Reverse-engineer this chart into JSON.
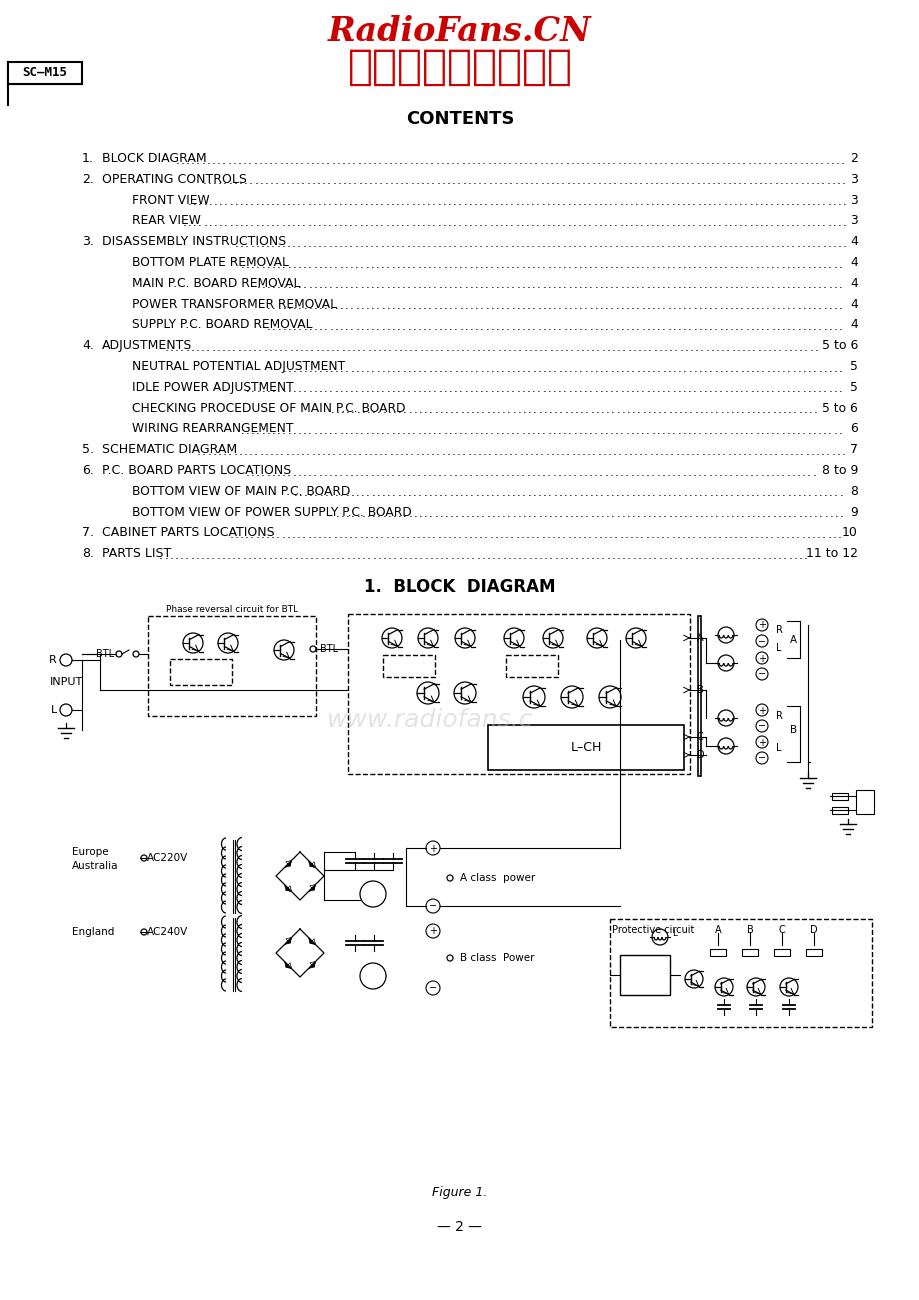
{
  "page_bg": "#ffffff",
  "header_line1": "RadioFans.CN",
  "header_line2": "收音机爱好者资料库",
  "header_color": "#cc0000",
  "label_text": "SC–M15",
  "contents_title": "CONTENTS",
  "contents_items": [
    {
      "num": "1.",
      "indent": 0,
      "text": "BLOCK DIAGRAM",
      "page": "2"
    },
    {
      "num": "2.",
      "indent": 0,
      "text": "OPERATING CONTROLS",
      "page": "3"
    },
    {
      "num": "",
      "indent": 1,
      "text": "FRONT VIEW",
      "page": "3"
    },
    {
      "num": "",
      "indent": 1,
      "text": "REAR VIEW",
      "page": "3"
    },
    {
      "num": "3.",
      "indent": 0,
      "text": "DISASSEMBLY INSTRUCTIONS",
      "page": "4"
    },
    {
      "num": "",
      "indent": 1,
      "text": "BOTTOM PLATE REMOVAL",
      "page": "4"
    },
    {
      "num": "",
      "indent": 1,
      "text": "MAIN P.C. BOARD REMOVAL",
      "page": "4"
    },
    {
      "num": "",
      "indent": 1,
      "text": "POWER TRANSFORMER REMOVAL",
      "page": "4"
    },
    {
      "num": "",
      "indent": 1,
      "text": "SUPPLY P.C. BOARD REMOVAL",
      "page": "4"
    },
    {
      "num": "4.",
      "indent": 0,
      "text": "ADJUSTMENTS",
      "page": "5 to 6"
    },
    {
      "num": "",
      "indent": 1,
      "text": "NEUTRAL POTENTIAL ADJUSTMENT",
      "page": "5"
    },
    {
      "num": "",
      "indent": 1,
      "text": "IDLE POWER ADJUSTMENT",
      "page": "5"
    },
    {
      "num": "",
      "indent": 1,
      "text": "CHECKING PROCEDUSE OF MAIN P.C. BOARD",
      "page": "5 to 6"
    },
    {
      "num": "",
      "indent": 1,
      "text": "WIRING REARRANGEMENT",
      "page": "6"
    },
    {
      "num": "5.",
      "indent": 0,
      "text": "SCHEMATIC DIAGRAM",
      "page": "7"
    },
    {
      "num": "6.",
      "indent": 0,
      "text": "P.C. BOARD PARTS LOCATIONS",
      "page": "8 to 9"
    },
    {
      "num": "",
      "indent": 1,
      "text": "BOTTOM VIEW OF MAIN P.C. BOARD",
      "page": "8"
    },
    {
      "num": "",
      "indent": 1,
      "text": "BOTTOM VIEW OF POWER SUPPLY P.C. BOARD",
      "page": "9"
    },
    {
      "num": "7.",
      "indent": 0,
      "text": "CABINET PARTS LOCATIONS",
      "page": "10"
    },
    {
      "num": "8.",
      "indent": 0,
      "text": "PARTS LIST",
      "page": "11 to 12"
    }
  ],
  "block_diagram_title": "1.  BLOCK  DIAGRAM",
  "figure_caption": "Figure 1.",
  "page_number": "— 2 —",
  "watermark": "www.radiofans.c",
  "watermark_color": "#c8c8c8"
}
